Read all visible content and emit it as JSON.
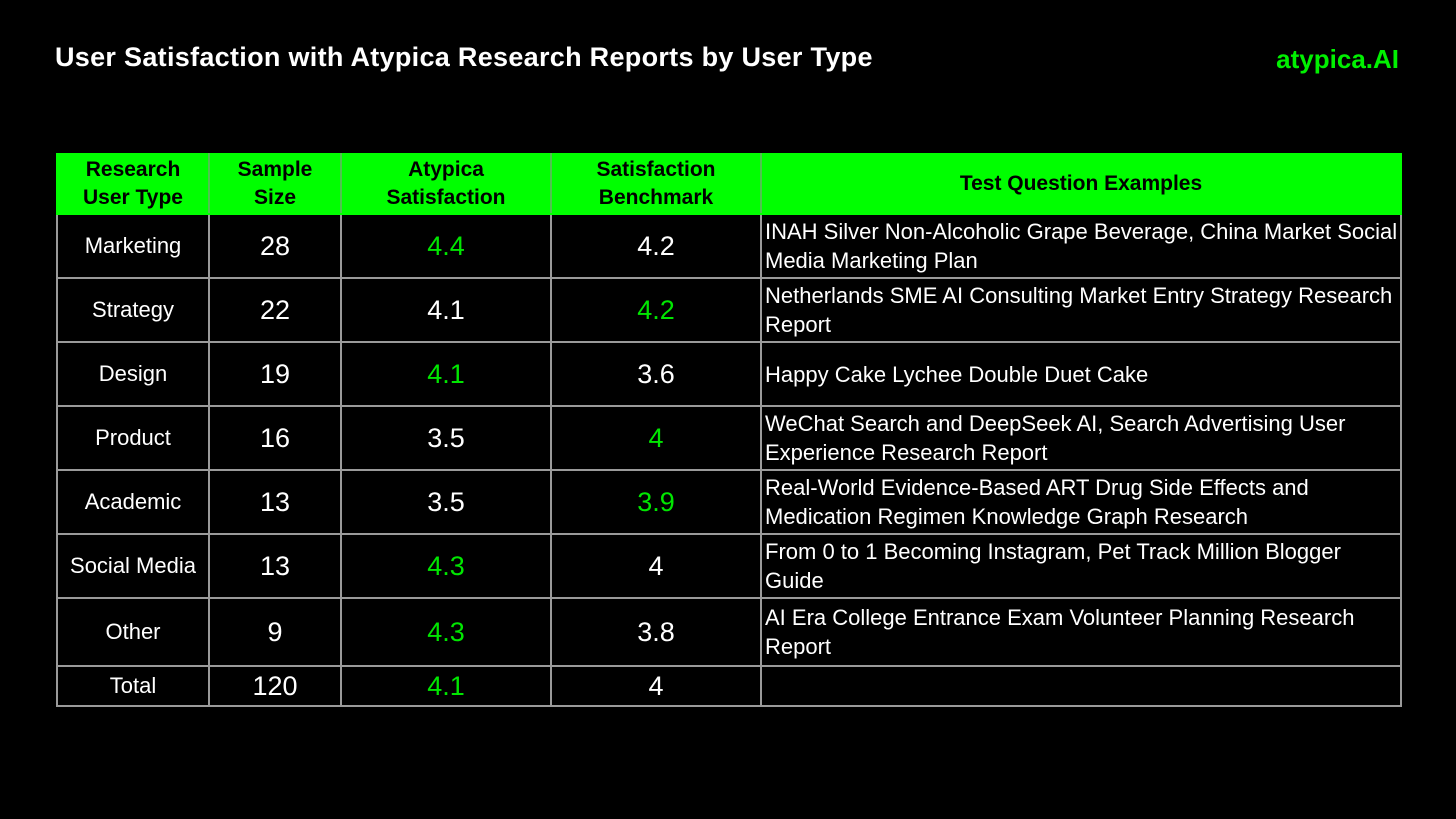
{
  "header": {
    "title": "User Satisfaction with Atypica Research Reports by User Type",
    "brand": "atypica.AI"
  },
  "colors": {
    "accent": "#00ff00",
    "highlight_text": "#00e600",
    "background": "#000000",
    "grid_line": "#9a9a9a"
  },
  "chart_data": {
    "type": "table",
    "columns": [
      "Research User Type",
      "Sample Size",
      "Atypica Satisfaction",
      "Satisfaction Benchmark",
      "Test Question Examples"
    ],
    "rows": [
      {
        "user_type": "Marketing",
        "sample_size": "28",
        "atypica": "4.4",
        "benchmark": "4.2",
        "example": "INAH Silver Non-Alcoholic Grape Beverage, China Market Social Media Marketing Plan",
        "highlight": "atypica"
      },
      {
        "user_type": "Strategy",
        "sample_size": "22",
        "atypica": "4.1",
        "benchmark": "4.2",
        "example": "Netherlands SME AI Consulting Market Entry Strategy Research Report",
        "highlight": "benchmark"
      },
      {
        "user_type": "Design",
        "sample_size": "19",
        "atypica": "4.1",
        "benchmark": "3.6",
        "example": "Happy Cake Lychee Double Duet Cake",
        "highlight": "atypica"
      },
      {
        "user_type": "Product",
        "sample_size": "16",
        "atypica": "3.5",
        "benchmark": "4",
        "example": "WeChat Search and DeepSeek AI, Search Advertising User Experience Research Report",
        "highlight": "benchmark"
      },
      {
        "user_type": "Academic",
        "sample_size": "13",
        "atypica": "3.5",
        "benchmark": "3.9",
        "example": "Real-World Evidence-Based ART Drug Side Effects and Medication Regimen Knowledge Graph Research",
        "highlight": "benchmark"
      },
      {
        "user_type": "Social Media",
        "sample_size": "13",
        "atypica": "4.3",
        "benchmark": "4",
        "example": "From 0 to 1 Becoming Instagram, Pet Track Million Blogger Guide",
        "highlight": "atypica"
      },
      {
        "user_type": "Other",
        "sample_size": "9",
        "atypica": "4.3",
        "benchmark": "3.8",
        "example": "AI Era College Entrance Exam Volunteer Planning Research Report",
        "highlight": "atypica"
      },
      {
        "user_type": "Total",
        "sample_size": "120",
        "atypica": "4.1",
        "benchmark": "4",
        "example": "",
        "highlight": "atypica"
      }
    ]
  }
}
